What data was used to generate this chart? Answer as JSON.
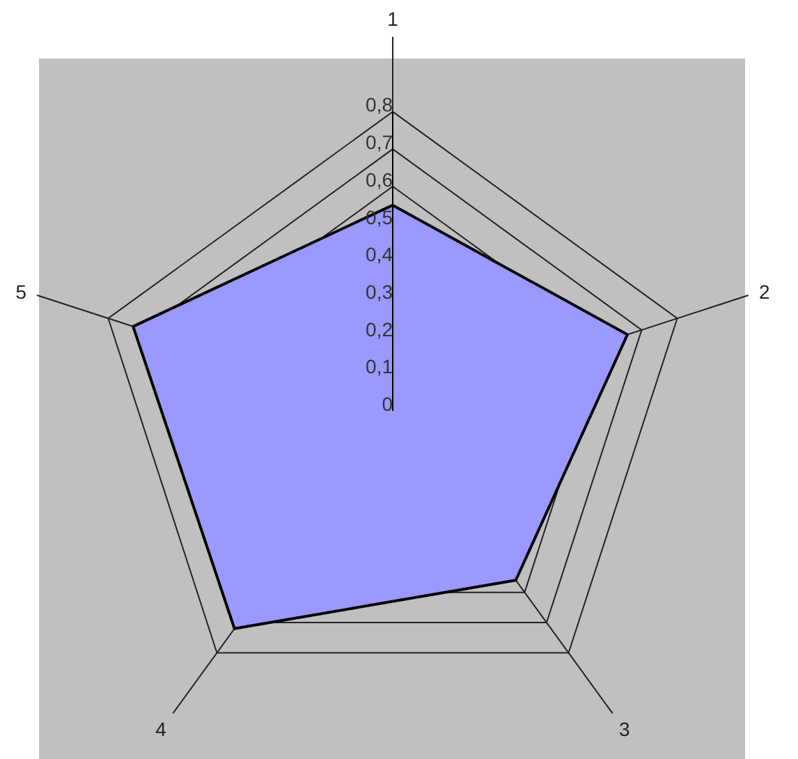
{
  "chart_data": {
    "type": "radar",
    "categories": [
      "1",
      "2",
      "3",
      "4",
      "5"
    ],
    "series": [
      {
        "color": "#9999ff",
        "values": [
          0.55,
          0.66,
          0.56,
          0.72,
          0.73
        ]
      }
    ],
    "ylim": [
      0,
      0.8
    ],
    "yticks": [
      {
        "value": 0,
        "label": "0"
      },
      {
        "value": 0.1,
        "label": "0,1"
      },
      {
        "value": 0.2,
        "label": "0,2"
      },
      {
        "value": 0.3,
        "label": "0,3"
      },
      {
        "value": 0.4,
        "label": "0,4"
      },
      {
        "value": 0.5,
        "label": "0,5"
      },
      {
        "value": 0.6,
        "label": "0,6"
      },
      {
        "value": 0.7,
        "label": "0,7"
      },
      {
        "value": 0.8,
        "label": "0,8"
      }
    ],
    "grid": true,
    "legend": false
  }
}
